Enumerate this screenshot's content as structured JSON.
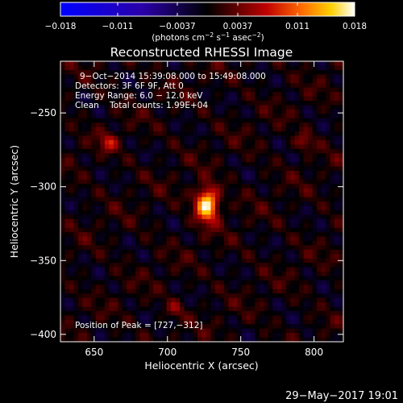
{
  "chart_data": {
    "type": "heatmap",
    "title": "Reconstructed RHESSI Image",
    "xlabel": "Heliocentric X (arcsec)",
    "ylabel": "Heliocentric Y (arcsec)",
    "xlim": [
      627,
      820
    ],
    "ylim": [
      -405,
      -215
    ],
    "x_ticks": [
      650,
      700,
      750,
      800
    ],
    "y_ticks": [
      -250,
      -300,
      -350,
      -400
    ],
    "x_tick_labels": [
      "650",
      "700",
      "750",
      "800"
    ],
    "y_tick_labels": [
      "−250",
      "−300",
      "−350",
      "−400"
    ],
    "colorbar": {
      "range": [
        -0.018,
        0.018
      ],
      "ticks": [
        -0.018,
        -0.011,
        -0.0037,
        0.0037,
        0.011,
        0.018
      ],
      "tick_labels": [
        "−0.018",
        "−0.011",
        "−0.0037",
        "0.0037",
        "0.011",
        "0.018"
      ],
      "unit_parts": [
        "(photons cm",
        "−2",
        " s",
        "−1",
        " asec",
        "−2",
        ")"
      ]
    },
    "annotations": [
      "9−Oct−2014 15:39:08.000 to 15:49:08.000",
      "Detectors: 3F 6F 9F, Att 0",
      "Energy Range: 6.0 − 12.0 keV",
      "Clean    Total counts: 1.99E+04"
    ],
    "peak_label": "Position of Peak = [727,−312]",
    "peak": {
      "x": 727,
      "y": -312,
      "value": 0.018
    },
    "secondary_sources": [
      {
        "x": 660,
        "y": -270,
        "value": 0.006
      },
      {
        "x": 793,
        "y": -270,
        "value": 0.005
      },
      {
        "x": 705,
        "y": -383,
        "value": 0.004
      }
    ],
    "background_value_range": [
      -0.004,
      0.0045
    ],
    "colors": {
      "negative": "#0000ff",
      "zero": "#000000",
      "positive_mid": "#e00000",
      "positive_high": "#ffffff"
    }
  },
  "footer_date": "29−May−2017 19:01"
}
